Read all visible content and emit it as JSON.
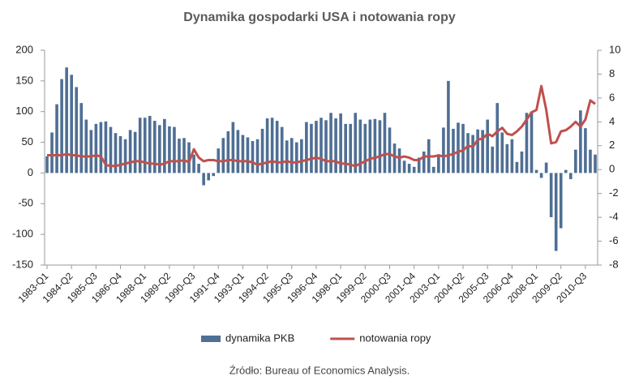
{
  "chart_data": {
    "type": "bar_line",
    "title": "Dynamika gospodarki USA i notowania ropy",
    "source": "Źródło: Bureau of Economics Analysis.",
    "categories": [
      "1983-Q1",
      null,
      null,
      null,
      null,
      "1984-Q2",
      null,
      null,
      null,
      null,
      "1985-Q3",
      null,
      null,
      null,
      null,
      "1986-Q4",
      null,
      null,
      null,
      null,
      "1988-Q1",
      null,
      null,
      null,
      null,
      "1989-Q2",
      null,
      null,
      null,
      null,
      "1990-Q3",
      null,
      null,
      null,
      null,
      "1991-Q4",
      null,
      null,
      null,
      null,
      "1993-Q1",
      null,
      null,
      null,
      null,
      "1994-Q2",
      null,
      null,
      null,
      null,
      "1995-Q3",
      null,
      null,
      null,
      null,
      "1996-Q4",
      null,
      null,
      null,
      null,
      "1998-Q1",
      null,
      null,
      null,
      null,
      "1999-Q2",
      null,
      null,
      null,
      null,
      "2000-Q3",
      null,
      null,
      null,
      null,
      "2001-Q4",
      null,
      null,
      null,
      null,
      "2003-Q1",
      null,
      null,
      null,
      null,
      "2004-Q2",
      null,
      null,
      null,
      null,
      "2005-Q3",
      null,
      null,
      null,
      null,
      "2006-Q4",
      null,
      null,
      null,
      null,
      "2008-Q1",
      null,
      null,
      null,
      null,
      "2009-Q2",
      null,
      null,
      null,
      null,
      "2010-Q3",
      null,
      null
    ],
    "series": [
      {
        "name": "dynamika PKB",
        "type": "bar",
        "color": "#4f6f94",
        "values": [
          27,
          66,
          112,
          153,
          172,
          160,
          140,
          114,
          87,
          70,
          80,
          83,
          84,
          75,
          65,
          60,
          55,
          70,
          67,
          90,
          90,
          93,
          85,
          78,
          88,
          76,
          75,
          56,
          57,
          50,
          30,
          15,
          -20,
          -12,
          -5,
          40,
          57,
          68,
          83,
          70,
          62,
          58,
          52,
          55,
          72,
          89,
          90,
          85,
          75,
          53,
          57,
          50,
          55,
          83,
          80,
          85,
          90,
          86,
          98,
          89,
          97,
          80,
          80,
          98,
          87,
          80,
          87,
          88,
          86,
          98,
          74,
          48,
          40,
          20,
          15,
          10,
          25,
          35,
          55,
          10,
          30,
          74,
          150,
          72,
          82,
          80,
          65,
          62,
          71,
          70,
          87,
          43,
          114,
          66,
          47,
          55,
          18,
          35,
          98,
          100,
          5,
          -8,
          17,
          -72,
          -127,
          -90,
          5,
          -10,
          38,
          102,
          73,
          38,
          30
        ]
      },
      {
        "name": "notowania ropy",
        "type": "line",
        "axis": "y2",
        "color": "#c0504d",
        "values": [
          1.2,
          1.2,
          1.2,
          1.2,
          1.3,
          1.2,
          1.2,
          1.1,
          1.1,
          1.1,
          1.2,
          1.1,
          0.4,
          0.3,
          0.3,
          0.4,
          0.5,
          0.6,
          0.7,
          0.7,
          0.6,
          0.5,
          0.5,
          0.4,
          0.5,
          0.7,
          0.7,
          0.7,
          0.8,
          0.6,
          1.7,
          1.0,
          0.7,
          0.8,
          0.8,
          0.7,
          0.7,
          0.8,
          0.8,
          0.7,
          0.7,
          0.7,
          0.6,
          0.4,
          0.5,
          0.6,
          0.7,
          0.6,
          0.6,
          0.7,
          0.6,
          0.6,
          0.7,
          0.8,
          0.9,
          1.0,
          0.9,
          0.7,
          0.7,
          0.7,
          0.5,
          0.5,
          0.4,
          0.3,
          0.5,
          0.7,
          0.9,
          1.0,
          1.1,
          1.3,
          1.3,
          1.1,
          1.0,
          1.1,
          1.0,
          0.8,
          0.8,
          1.1,
          1.1,
          1.1,
          1.2,
          1.1,
          1.2,
          1.3,
          1.5,
          1.6,
          2.0,
          1.9,
          2.5,
          2.6,
          3.0,
          2.8,
          3.2,
          3.5,
          3.0,
          2.9,
          3.2,
          3.6,
          4.2,
          4.8,
          5.0,
          7.0,
          5.0,
          2.2,
          2.3,
          3.2,
          3.3,
          3.6,
          4.0,
          3.6,
          4.2,
          5.8,
          5.5
        ]
      }
    ],
    "ylim": [
      -150,
      200
    ],
    "yticks": [
      -150,
      -100,
      -50,
      0,
      50,
      100,
      150,
      200
    ],
    "y2lim": [
      -8,
      10
    ],
    "y2ticks": [
      -8,
      -6,
      -4,
      -2,
      0,
      2,
      4,
      6,
      8,
      10
    ],
    "grid": false,
    "legend": "bottom"
  }
}
